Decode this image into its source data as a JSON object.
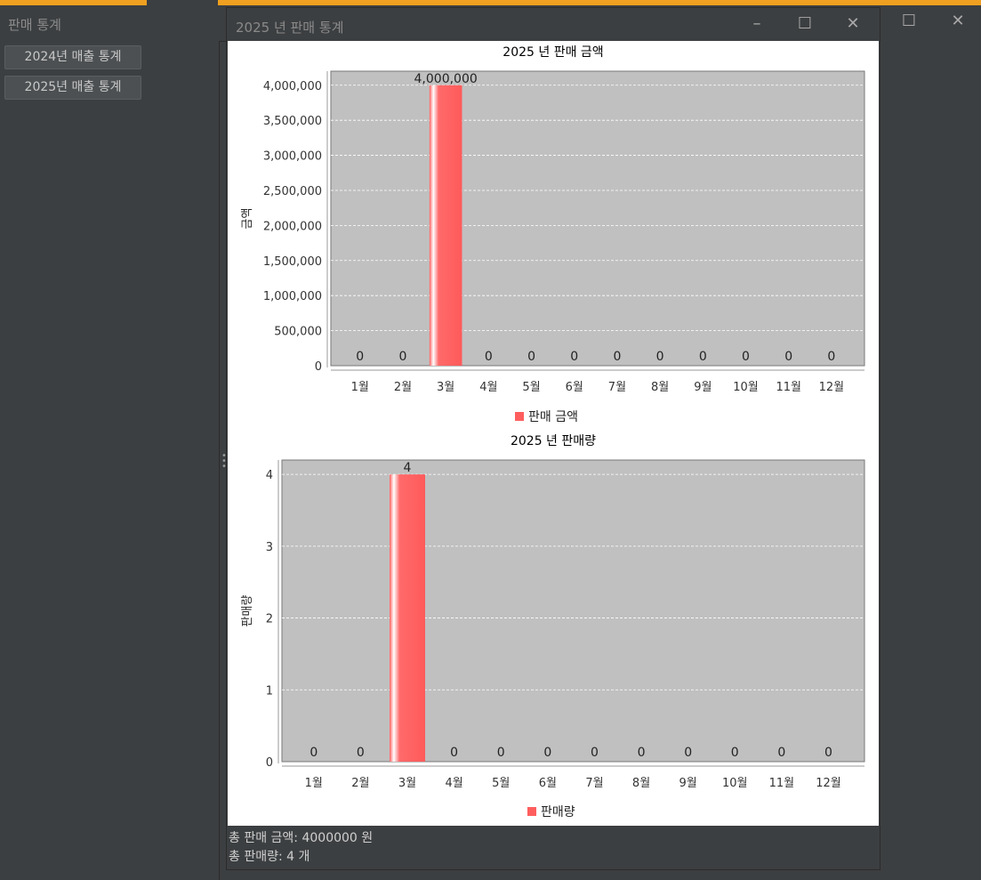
{
  "main_window": {
    "title": "판매 통계",
    "buttons": [
      "2024년 매출 통계",
      "2025년 매출 통계"
    ]
  },
  "child_window": {
    "title": "2025 년 판매 통계",
    "summary_amount": "총 판매 금액: 4000000 원",
    "summary_qty": "총 판매량: 4 개"
  },
  "colors": {
    "bar": "#ff5e5e",
    "plot_bg": "#c0c0c0",
    "accent": "#f0a020"
  },
  "chart_data": [
    {
      "type": "bar",
      "title": "2025 년 판매 금액",
      "ylabel": "금액",
      "xlabel": "",
      "categories": [
        "1월",
        "2월",
        "3월",
        "4월",
        "5월",
        "6월",
        "7월",
        "8월",
        "9월",
        "10월",
        "11월",
        "12월"
      ],
      "series": [
        {
          "name": "판매 금액",
          "values": [
            0,
            0,
            4000000,
            0,
            0,
            0,
            0,
            0,
            0,
            0,
            0,
            0
          ]
        }
      ],
      "value_labels": [
        "0",
        "0",
        "4,000,000",
        "0",
        "0",
        "0",
        "0",
        "0",
        "0",
        "0",
        "0",
        "0"
      ],
      "ylim": [
        0,
        4200000
      ],
      "yticks": [
        0,
        500000,
        1000000,
        1500000,
        2000000,
        2500000,
        3000000,
        3500000,
        4000000
      ],
      "ytick_labels": [
        "0",
        "500,000",
        "1,000,000",
        "1,500,000",
        "2,000,000",
        "2,500,000",
        "3,000,000",
        "3,500,000",
        "4,000,000"
      ],
      "legend_position": "bottom",
      "grid": true
    },
    {
      "type": "bar",
      "title": "2025 년 판매량",
      "ylabel": "판매량",
      "xlabel": "",
      "categories": [
        "1월",
        "2월",
        "3월",
        "4월",
        "5월",
        "6월",
        "7월",
        "8월",
        "9월",
        "10월",
        "11월",
        "12월"
      ],
      "series": [
        {
          "name": "판매량",
          "values": [
            0,
            0,
            4,
            0,
            0,
            0,
            0,
            0,
            0,
            0,
            0,
            0
          ]
        }
      ],
      "value_labels": [
        "0",
        "0",
        "4",
        "0",
        "0",
        "0",
        "0",
        "0",
        "0",
        "0",
        "0",
        "0"
      ],
      "ylim": [
        0,
        4.2
      ],
      "yticks": [
        0,
        1,
        2,
        3,
        4
      ],
      "ytick_labels": [
        "0",
        "1",
        "2",
        "3",
        "4"
      ],
      "legend_position": "bottom",
      "grid": true
    }
  ]
}
